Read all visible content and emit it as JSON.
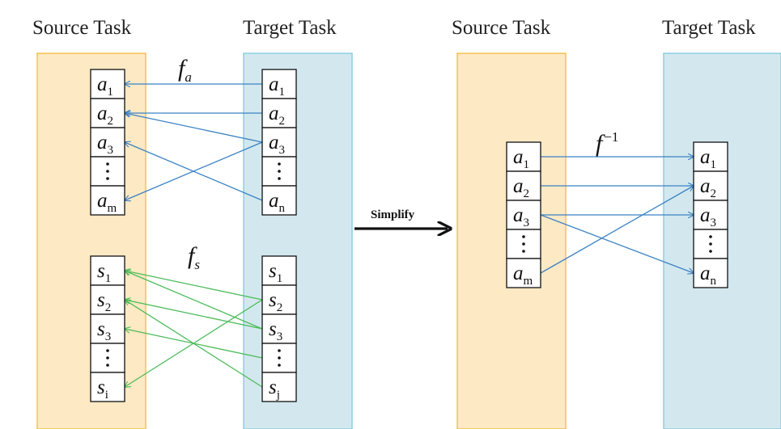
{
  "left_panel": {
    "source_header": "Source Task",
    "target_header": "Target Task",
    "action_mapping": {
      "label": "f",
      "label_sub": "a",
      "source_cells": [
        {
          "base": "a",
          "sub": "1"
        },
        {
          "base": "a",
          "sub": "2"
        },
        {
          "base": "a",
          "sub": "3"
        },
        {
          "dots": true
        },
        {
          "base": "a",
          "sub": "m"
        }
      ],
      "target_cells": [
        {
          "base": "a",
          "sub": "1"
        },
        {
          "base": "a",
          "sub": "2"
        },
        {
          "base": "a",
          "sub": "3"
        },
        {
          "dots": true
        },
        {
          "base": "a",
          "sub": "n"
        }
      ],
      "links": [
        {
          "from": 0,
          "to": 0
        },
        {
          "from": 1,
          "to": 1
        },
        {
          "from": 1,
          "to": 2
        },
        {
          "from": 2,
          "to": 4
        },
        {
          "from": 4,
          "to": 2
        }
      ]
    },
    "state_mapping": {
      "label": "f",
      "label_sub": "s",
      "source_cells": [
        {
          "base": "s",
          "sub": "1"
        },
        {
          "base": "s",
          "sub": "2"
        },
        {
          "base": "s",
          "sub": "3"
        },
        {
          "dots": true
        },
        {
          "base": "s",
          "sub": "i"
        }
      ],
      "target_cells": [
        {
          "base": "s",
          "sub": "1"
        },
        {
          "base": "s",
          "sub": "2"
        },
        {
          "base": "s",
          "sub": "3"
        },
        {
          "dots": true
        },
        {
          "base": "s",
          "sub": "j"
        }
      ],
      "links": [
        {
          "from": 0,
          "to": 1
        },
        {
          "from": 0,
          "to": 2
        },
        {
          "from": 1,
          "to": 4
        },
        {
          "from": 1,
          "to": 2
        },
        {
          "from": 2,
          "to": 3
        },
        {
          "from": 4,
          "to": 1
        }
      ]
    }
  },
  "middle": {
    "simplify_label": "Simplify"
  },
  "right_panel": {
    "source_header": "Source Task",
    "target_header": "Target Task",
    "inverse_mapping": {
      "label": "f",
      "label_sup": "−1",
      "source_cells": [
        {
          "base": "a",
          "sub": "1"
        },
        {
          "base": "a",
          "sub": "2"
        },
        {
          "base": "a",
          "sub": "3"
        },
        {
          "dots": true
        },
        {
          "base": "a",
          "sub": "m"
        }
      ],
      "target_cells": [
        {
          "base": "a",
          "sub": "1"
        },
        {
          "base": "a",
          "sub": "2"
        },
        {
          "base": "a",
          "sub": "3"
        },
        {
          "dots": true
        },
        {
          "base": "a",
          "sub": "n"
        }
      ],
      "links": [
        {
          "from": 0,
          "to": 0
        },
        {
          "from": 1,
          "to": 1
        },
        {
          "from": 2,
          "to": 2
        },
        {
          "from": 2,
          "to": 4
        },
        {
          "from": 4,
          "to": 1
        }
      ]
    }
  },
  "colors": {
    "source_fill": "#fde9c4",
    "source_stroke": "#f5c24f",
    "target_fill": "#d3e8ee",
    "target_stroke": "#8ccfe1",
    "action_arrow": "#3b82c4",
    "state_arrow": "#4cbb5a",
    "cell_stroke": "#111111"
  }
}
